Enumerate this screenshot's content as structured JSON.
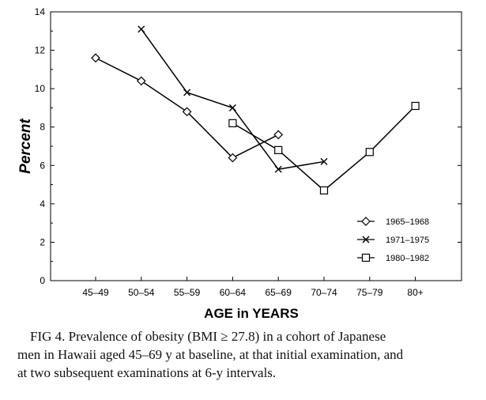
{
  "chart_data": {
    "type": "line",
    "xlabel": "AGE in YEARS",
    "ylabel": "Percent",
    "ylim": [
      0,
      14
    ],
    "yticks": [
      "0",
      "2",
      "4",
      "6",
      "8",
      "10",
      "12",
      "14"
    ],
    "categories": [
      "45-49",
      "50-54",
      "55-59",
      "60-64",
      "65-69",
      "70-74",
      "75-79",
      "80+"
    ],
    "legend_position": "bottom-right",
    "grid": false,
    "series": [
      {
        "name": "1965-1968",
        "marker": "diamond",
        "values": [
          11.6,
          10.4,
          8.8,
          6.4,
          7.6,
          null,
          null,
          null
        ]
      },
      {
        "name": "1971-1975",
        "marker": "x",
        "values": [
          null,
          13.1,
          9.8,
          9.0,
          5.8,
          6.2,
          null,
          null
        ]
      },
      {
        "name": "1980-1982",
        "marker": "square",
        "values": [
          null,
          null,
          null,
          8.2,
          6.8,
          4.7,
          6.7,
          9.1
        ]
      }
    ]
  },
  "caption": {
    "line1": "FIG 4. Prevalence of obesity (BMI ≥ 27.8) in a cohort of Japanese",
    "line2": "men in Hawaii aged 45–69 y at baseline, at that initial examination, and",
    "line3": "at two subsequent examinations at 6-y intervals."
  }
}
